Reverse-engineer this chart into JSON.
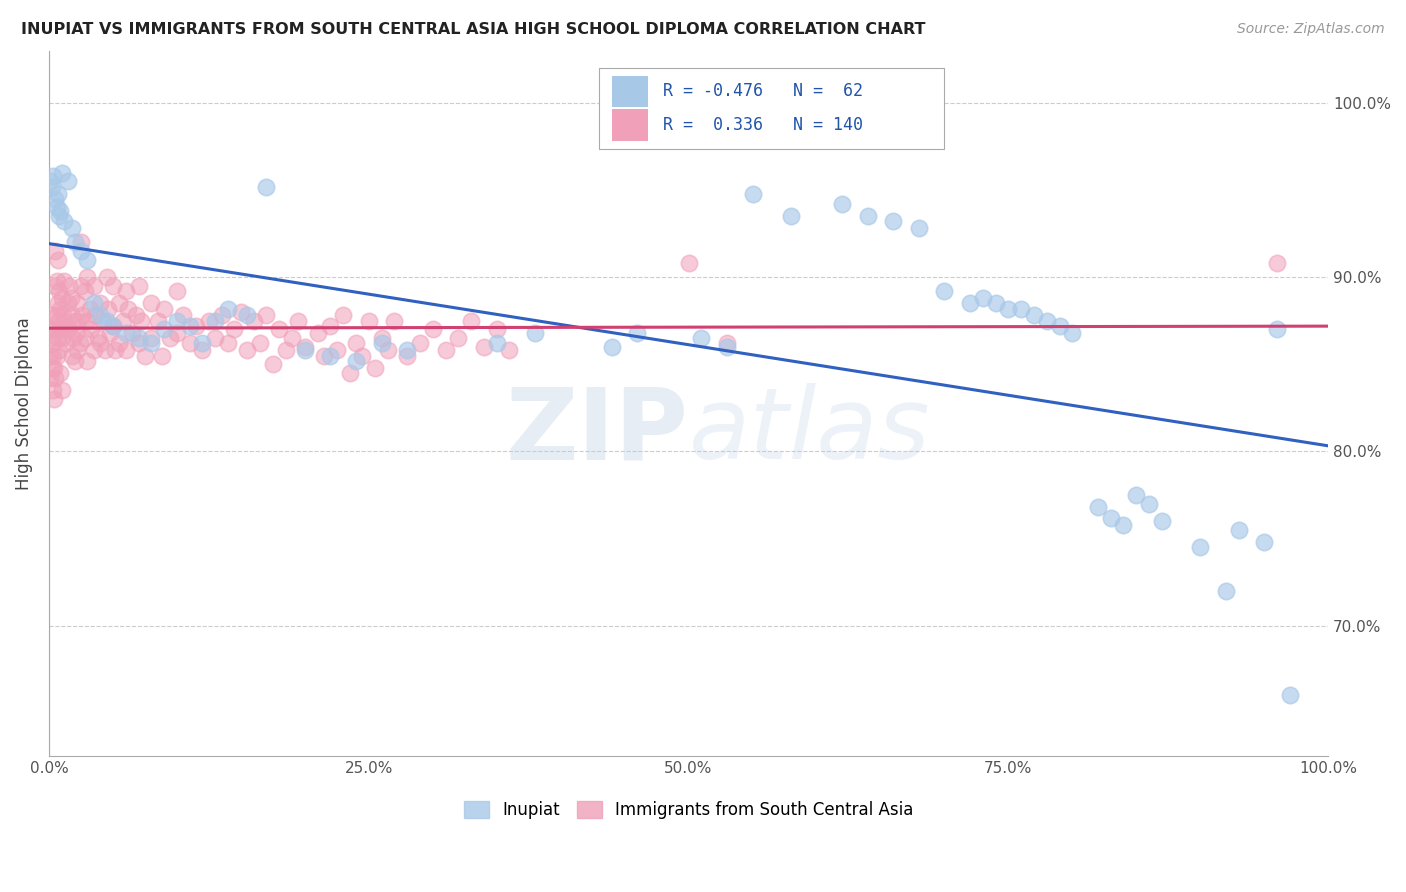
{
  "title": "INUPIAT VS IMMIGRANTS FROM SOUTH CENTRAL ASIA HIGH SCHOOL DIPLOMA CORRELATION CHART",
  "source": "Source: ZipAtlas.com",
  "ylabel": "High School Diploma",
  "legend_entries": [
    {
      "label": "Inupiat",
      "color": "#a8c8e8",
      "R": -0.476,
      "N": 62
    },
    {
      "label": "Immigrants from South Central Asia",
      "color": "#f0a0b8",
      "R": 0.336,
      "N": 140
    }
  ],
  "blue_scatter_color": "#a8c8e8",
  "pink_scatter_color": "#f0a0b8",
  "blue_line_color": "#3060c0",
  "pink_line_color": "#d04070",
  "watermark_zip_color": "#c8d8f0",
  "watermark_atlas_color": "#c0cce0",
  "blue_points": [
    [
      0.001,
      0.955
    ],
    [
      0.002,
      0.952
    ],
    [
      0.003,
      0.958
    ],
    [
      0.005,
      0.945
    ],
    [
      0.006,
      0.94
    ],
    [
      0.007,
      0.948
    ],
    [
      0.008,
      0.935
    ],
    [
      0.009,
      0.938
    ],
    [
      0.01,
      0.96
    ],
    [
      0.012,
      0.932
    ],
    [
      0.015,
      0.955
    ],
    [
      0.018,
      0.928
    ],
    [
      0.02,
      0.92
    ],
    [
      0.025,
      0.915
    ],
    [
      0.03,
      0.91
    ],
    [
      0.035,
      0.885
    ],
    [
      0.04,
      0.878
    ],
    [
      0.045,
      0.875
    ],
    [
      0.05,
      0.872
    ],
    [
      0.06,
      0.868
    ],
    [
      0.07,
      0.865
    ],
    [
      0.08,
      0.862
    ],
    [
      0.09,
      0.87
    ],
    [
      0.1,
      0.875
    ],
    [
      0.11,
      0.872
    ],
    [
      0.12,
      0.862
    ],
    [
      0.13,
      0.875
    ],
    [
      0.14,
      0.882
    ],
    [
      0.155,
      0.878
    ],
    [
      0.17,
      0.952
    ],
    [
      0.2,
      0.858
    ],
    [
      0.22,
      0.855
    ],
    [
      0.24,
      0.852
    ],
    [
      0.26,
      0.862
    ],
    [
      0.28,
      0.858
    ],
    [
      0.35,
      0.862
    ],
    [
      0.38,
      0.868
    ],
    [
      0.44,
      0.86
    ],
    [
      0.46,
      0.868
    ],
    [
      0.51,
      0.865
    ],
    [
      0.53,
      0.86
    ],
    [
      0.55,
      0.948
    ],
    [
      0.58,
      0.935
    ],
    [
      0.62,
      0.942
    ],
    [
      0.64,
      0.935
    ],
    [
      0.66,
      0.932
    ],
    [
      0.68,
      0.928
    ],
    [
      0.7,
      0.892
    ],
    [
      0.72,
      0.885
    ],
    [
      0.73,
      0.888
    ],
    [
      0.74,
      0.885
    ],
    [
      0.75,
      0.882
    ],
    [
      0.76,
      0.882
    ],
    [
      0.77,
      0.878
    ],
    [
      0.78,
      0.875
    ],
    [
      0.79,
      0.872
    ],
    [
      0.8,
      0.868
    ],
    [
      0.82,
      0.768
    ],
    [
      0.83,
      0.762
    ],
    [
      0.84,
      0.758
    ],
    [
      0.85,
      0.775
    ],
    [
      0.86,
      0.77
    ],
    [
      0.87,
      0.76
    ],
    [
      0.9,
      0.745
    ],
    [
      0.92,
      0.72
    ],
    [
      0.93,
      0.755
    ],
    [
      0.95,
      0.748
    ],
    [
      0.96,
      0.87
    ],
    [
      0.97,
      0.66
    ]
  ],
  "pink_points": [
    [
      0.001,
      0.855
    ],
    [
      0.001,
      0.842
    ],
    [
      0.001,
      0.87
    ],
    [
      0.002,
      0.865
    ],
    [
      0.002,
      0.848
    ],
    [
      0.002,
      0.878
    ],
    [
      0.003,
      0.855
    ],
    [
      0.003,
      0.835
    ],
    [
      0.003,
      0.862
    ],
    [
      0.004,
      0.848
    ],
    [
      0.004,
      0.83
    ],
    [
      0.005,
      0.842
    ],
    [
      0.005,
      0.915
    ],
    [
      0.005,
      0.895
    ],
    [
      0.005,
      0.87
    ],
    [
      0.006,
      0.855
    ],
    [
      0.006,
      0.898
    ],
    [
      0.006,
      0.878
    ],
    [
      0.007,
      0.865
    ],
    [
      0.007,
      0.91
    ],
    [
      0.007,
      0.885
    ],
    [
      0.008,
      0.858
    ],
    [
      0.008,
      0.892
    ],
    [
      0.008,
      0.875
    ],
    [
      0.009,
      0.845
    ],
    [
      0.009,
      0.882
    ],
    [
      0.009,
      0.87
    ],
    [
      0.01,
      0.835
    ],
    [
      0.01,
      0.888
    ],
    [
      0.01,
      0.865
    ],
    [
      0.011,
      0.878
    ],
    [
      0.012,
      0.898
    ],
    [
      0.012,
      0.875
    ],
    [
      0.013,
      0.862
    ],
    [
      0.014,
      0.87
    ],
    [
      0.015,
      0.885
    ],
    [
      0.016,
      0.895
    ],
    [
      0.016,
      0.87
    ],
    [
      0.017,
      0.888
    ],
    [
      0.018,
      0.878
    ],
    [
      0.018,
      0.855
    ],
    [
      0.019,
      0.865
    ],
    [
      0.02,
      0.875
    ],
    [
      0.02,
      0.852
    ],
    [
      0.021,
      0.868
    ],
    [
      0.022,
      0.885
    ],
    [
      0.022,
      0.858
    ],
    [
      0.023,
      0.875
    ],
    [
      0.024,
      0.862
    ],
    [
      0.025,
      0.92
    ],
    [
      0.025,
      0.895
    ],
    [
      0.026,
      0.878
    ],
    [
      0.028,
      0.865
    ],
    [
      0.028,
      0.892
    ],
    [
      0.03,
      0.9
    ],
    [
      0.03,
      0.875
    ],
    [
      0.03,
      0.852
    ],
    [
      0.032,
      0.882
    ],
    [
      0.033,
      0.87
    ],
    [
      0.035,
      0.858
    ],
    [
      0.035,
      0.895
    ],
    [
      0.036,
      0.878
    ],
    [
      0.038,
      0.865
    ],
    [
      0.04,
      0.885
    ],
    [
      0.04,
      0.862
    ],
    [
      0.042,
      0.875
    ],
    [
      0.044,
      0.858
    ],
    [
      0.045,
      0.9
    ],
    [
      0.046,
      0.882
    ],
    [
      0.048,
      0.868
    ],
    [
      0.05,
      0.895
    ],
    [
      0.05,
      0.872
    ],
    [
      0.052,
      0.858
    ],
    [
      0.055,
      0.885
    ],
    [
      0.055,
      0.862
    ],
    [
      0.058,
      0.875
    ],
    [
      0.06,
      0.892
    ],
    [
      0.06,
      0.858
    ],
    [
      0.062,
      0.882
    ],
    [
      0.065,
      0.868
    ],
    [
      0.068,
      0.878
    ],
    [
      0.07,
      0.895
    ],
    [
      0.07,
      0.862
    ],
    [
      0.072,
      0.875
    ],
    [
      0.075,
      0.855
    ],
    [
      0.08,
      0.885
    ],
    [
      0.08,
      0.865
    ],
    [
      0.085,
      0.875
    ],
    [
      0.088,
      0.855
    ],
    [
      0.09,
      0.882
    ],
    [
      0.095,
      0.865
    ],
    [
      0.1,
      0.892
    ],
    [
      0.1,
      0.868
    ],
    [
      0.105,
      0.878
    ],
    [
      0.11,
      0.862
    ],
    [
      0.115,
      0.872
    ],
    [
      0.12,
      0.858
    ],
    [
      0.125,
      0.875
    ],
    [
      0.13,
      0.865
    ],
    [
      0.135,
      0.878
    ],
    [
      0.14,
      0.862
    ],
    [
      0.145,
      0.87
    ],
    [
      0.15,
      0.88
    ],
    [
      0.155,
      0.858
    ],
    [
      0.16,
      0.875
    ],
    [
      0.165,
      0.862
    ],
    [
      0.17,
      0.878
    ],
    [
      0.175,
      0.85
    ],
    [
      0.18,
      0.87
    ],
    [
      0.185,
      0.858
    ],
    [
      0.19,
      0.865
    ],
    [
      0.195,
      0.875
    ],
    [
      0.2,
      0.86
    ],
    [
      0.21,
      0.868
    ],
    [
      0.215,
      0.855
    ],
    [
      0.22,
      0.872
    ],
    [
      0.225,
      0.858
    ],
    [
      0.23,
      0.878
    ],
    [
      0.235,
      0.845
    ],
    [
      0.24,
      0.862
    ],
    [
      0.245,
      0.855
    ],
    [
      0.25,
      0.875
    ],
    [
      0.255,
      0.848
    ],
    [
      0.26,
      0.865
    ],
    [
      0.265,
      0.858
    ],
    [
      0.27,
      0.875
    ],
    [
      0.28,
      0.855
    ],
    [
      0.29,
      0.862
    ],
    [
      0.3,
      0.87
    ],
    [
      0.31,
      0.858
    ],
    [
      0.32,
      0.865
    ],
    [
      0.33,
      0.875
    ],
    [
      0.34,
      0.86
    ],
    [
      0.35,
      0.87
    ],
    [
      0.36,
      0.858
    ],
    [
      0.5,
      0.908
    ],
    [
      0.53,
      0.862
    ],
    [
      0.96,
      0.908
    ]
  ],
  "xlim": [
    0,
    1.0
  ],
  "ylim": [
    0.625,
    1.03
  ],
  "ytick_vals": [
    0.7,
    0.8,
    0.9,
    1.0
  ],
  "ytick_labels": [
    "70.0%",
    "80.0%",
    "90.0%",
    "100.0%"
  ],
  "xtick_vals": [
    0.0,
    0.25,
    0.5,
    0.75,
    1.0
  ],
  "xtick_labels": [
    "0.0%",
    "25.0%",
    "50.0%",
    "75.0%",
    "100.0%"
  ],
  "grid_color": "#cccccc",
  "background_color": "#ffffff"
}
